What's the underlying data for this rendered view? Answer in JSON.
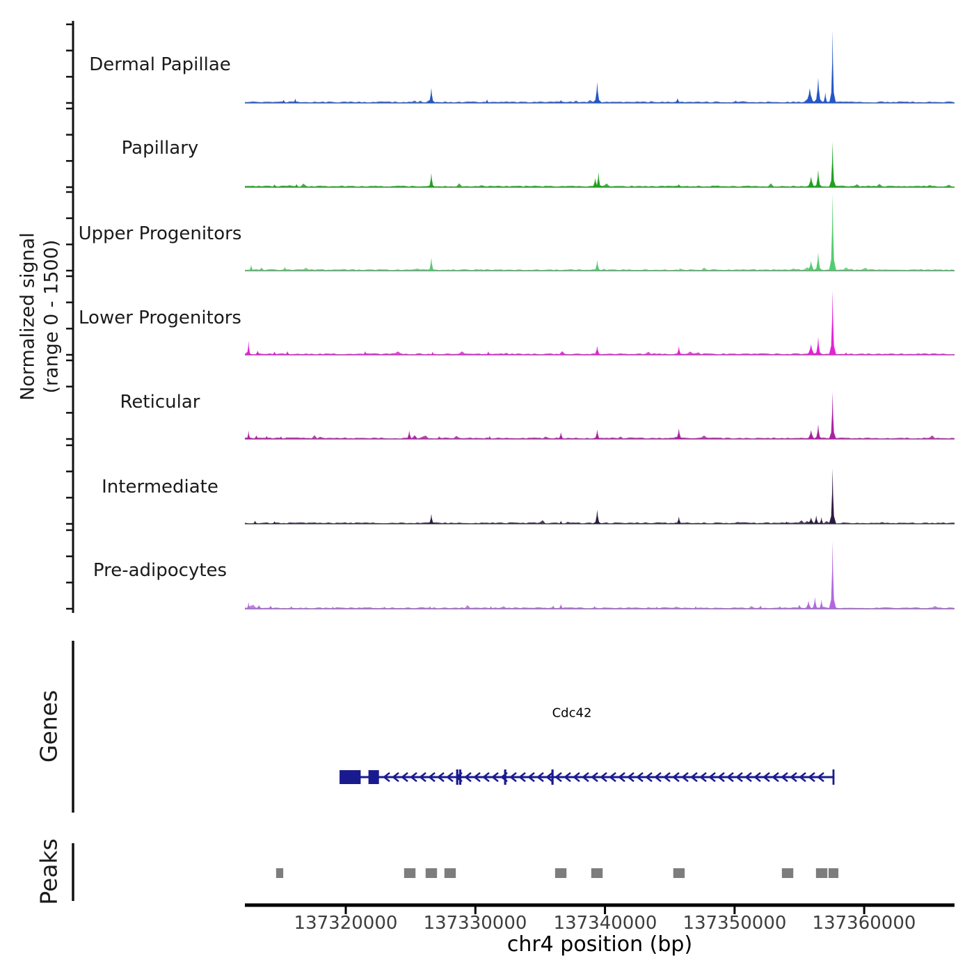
{
  "labels": {
    "y_axis_line1": "Normalized signal",
    "y_axis_line2": "(range 0 - 1500)",
    "genes_section": "Genes",
    "peaks_section": "Peaks"
  },
  "chart_data": {
    "type": "area",
    "xlabel": "chr4 position (bp)",
    "ylabel": "Normalized signal (range 0 - 1500)",
    "ylim": [
      0,
      1500
    ],
    "yticks": [
      0,
      500,
      1000,
      1500
    ],
    "x_range_bp": [
      137312216,
      137366970
    ],
    "x_ticks_bp": [
      137320000,
      137330000,
      137340000,
      137350000,
      137360000
    ],
    "x_tick_labels": [
      "137320000",
      "137330000",
      "137340000",
      "137350000",
      "137360000"
    ],
    "tracks": [
      {
        "label": "Dermal Papillae",
        "color": "#2457c5",
        "peaks": [
          [
            137315200,
            60,
            400
          ],
          [
            137316100,
            85,
            300
          ],
          [
            137326600,
            290,
            350
          ],
          [
            137330900,
            70,
            300
          ],
          [
            137336600,
            60,
            300
          ],
          [
            137339400,
            400,
            380
          ],
          [
            137345600,
            90,
            400
          ],
          [
            137350100,
            50,
            300
          ],
          [
            137355800,
            280,
            600
          ],
          [
            137356450,
            480,
            400
          ],
          [
            137357000,
            200,
            300
          ],
          [
            137357560,
            1390,
            260
          ]
        ]
      },
      {
        "label": "Papillary",
        "color": "#21a121",
        "peaks": [
          [
            137314500,
            50,
            400
          ],
          [
            137316200,
            60,
            350
          ],
          [
            137326600,
            270,
            330
          ],
          [
            137339250,
            170,
            400
          ],
          [
            137339500,
            290,
            300
          ],
          [
            137345700,
            60,
            350
          ],
          [
            137355900,
            200,
            500
          ],
          [
            137356450,
            330,
            350
          ],
          [
            137357560,
            870,
            280
          ]
        ]
      },
      {
        "label": "Upper Progenitors",
        "color": "#52cc6e",
        "peaks": [
          [
            137312700,
            110,
            300
          ],
          [
            137313500,
            60,
            500
          ],
          [
            137315300,
            70,
            400
          ],
          [
            137326600,
            250,
            330
          ],
          [
            137339400,
            200,
            350
          ],
          [
            137345800,
            50,
            300
          ],
          [
            137355900,
            180,
            500
          ],
          [
            137356450,
            350,
            350
          ],
          [
            137357560,
            1480,
            280
          ]
        ]
      },
      {
        "label": "Lower Progenitors",
        "color": "#e322d6",
        "peaks": [
          [
            137312500,
            270,
            250
          ],
          [
            137313200,
            80,
            400
          ],
          [
            137314500,
            60,
            400
          ],
          [
            137315500,
            70,
            350
          ],
          [
            137321500,
            70,
            350
          ],
          [
            137326700,
            60,
            300
          ],
          [
            137331000,
            70,
            300
          ],
          [
            137336700,
            60,
            300
          ],
          [
            137339400,
            170,
            380
          ],
          [
            137345700,
            160,
            350
          ],
          [
            137355900,
            200,
            550
          ],
          [
            137356450,
            340,
            350
          ],
          [
            137357560,
            1230,
            280
          ],
          [
            137358600,
            45,
            400
          ]
        ]
      },
      {
        "label": "Reticular",
        "color": "#aa22a2",
        "peaks": [
          [
            137312500,
            160,
            250
          ],
          [
            137313100,
            70,
            400
          ],
          [
            137313900,
            60,
            350
          ],
          [
            137315000,
            50,
            350
          ],
          [
            137324900,
            160,
            350
          ],
          [
            137325350,
            60,
            300
          ],
          [
            137327200,
            55,
            300
          ],
          [
            137331100,
            60,
            300
          ],
          [
            137336600,
            130,
            350
          ],
          [
            137339400,
            180,
            350
          ],
          [
            137345700,
            200,
            380
          ],
          [
            137355900,
            170,
            500
          ],
          [
            137356450,
            280,
            350
          ],
          [
            137357560,
            900,
            280
          ]
        ]
      },
      {
        "label": "Intermediate",
        "color": "#2e1b42",
        "peaks": [
          [
            137313000,
            60,
            350
          ],
          [
            137314500,
            50,
            350
          ],
          [
            137326600,
            190,
            330
          ],
          [
            137336600,
            60,
            300
          ],
          [
            137339400,
            270,
            360
          ],
          [
            137345700,
            140,
            350
          ],
          [
            137354000,
            45,
            300
          ],
          [
            137355900,
            120,
            500
          ],
          [
            137356300,
            160,
            350
          ],
          [
            137356700,
            130,
            300
          ],
          [
            137357560,
            1060,
            280
          ]
        ]
      },
      {
        "label": "Pre-adipocytes",
        "color": "#b168dd",
        "peaks": [
          [
            137312500,
            130,
            250
          ],
          [
            137313300,
            70,
            500
          ],
          [
            137314200,
            60,
            400
          ],
          [
            137315800,
            50,
            350
          ],
          [
            137319000,
            40,
            300
          ],
          [
            137323000,
            40,
            300
          ],
          [
            137326500,
            50,
            300
          ],
          [
            137331200,
            50,
            300
          ],
          [
            137336000,
            60,
            400
          ],
          [
            137336600,
            90,
            350
          ],
          [
            137339200,
            55,
            300
          ],
          [
            137344000,
            40,
            300
          ],
          [
            137347000,
            50,
            300
          ],
          [
            137352000,
            60,
            400
          ],
          [
            137353500,
            50,
            300
          ],
          [
            137355000,
            80,
            400
          ],
          [
            137355700,
            150,
            450
          ],
          [
            137356200,
            220,
            350
          ],
          [
            137356700,
            180,
            300
          ],
          [
            137357560,
            1290,
            280
          ]
        ]
      }
    ],
    "gene_track": {
      "label": "Genes",
      "gene": {
        "name": "Cdc42",
        "strand": "-",
        "color": "#1a1a8f",
        "line_bp": [
          137319520,
          137357700
        ],
        "big_exons": [
          [
            137319520,
            137321150
          ],
          [
            137321750,
            137322560
          ]
        ],
        "tick_exons_bp": [
          137328600,
          137328830,
          137332300,
          137335950
        ],
        "end_bar_bp": 137357630
      }
    },
    "peaks_track": {
      "label": "Peaks",
      "color": "#7d7d7d",
      "boxes": [
        [
          137314900,
          550
        ],
        [
          137324940,
          880
        ],
        [
          137326600,
          880
        ],
        [
          137328050,
          880
        ],
        [
          137336590,
          880
        ],
        [
          137339380,
          880
        ],
        [
          137345710,
          880
        ],
        [
          137354090,
          880
        ],
        [
          137356720,
          880
        ],
        [
          137357630,
          760
        ]
      ]
    }
  }
}
